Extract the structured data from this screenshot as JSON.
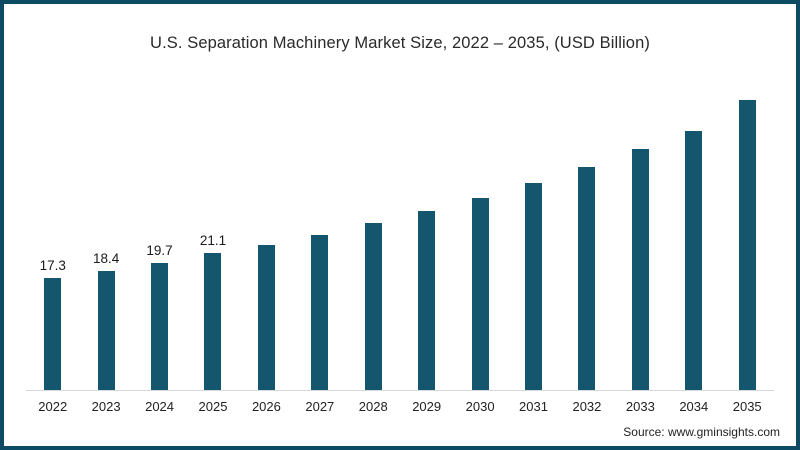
{
  "chart_data": {
    "type": "bar",
    "title": "U.S. Separation Machinery Market Size, 2022 – 2035, (USD Billion)",
    "categories": [
      "2022",
      "2023",
      "2024",
      "2025",
      "2026",
      "2027",
      "2028",
      "2029",
      "2030",
      "2031",
      "2032",
      "2033",
      "2034",
      "2035"
    ],
    "values": [
      17.3,
      18.4,
      19.7,
      21.1,
      22.4,
      24.0,
      25.8,
      27.6,
      29.7,
      32.0,
      34.4,
      37.2,
      40.1,
      44.8
    ],
    "data_labels": [
      "17.3",
      "18.4",
      "19.7",
      "21.1",
      "",
      "",
      "",
      "",
      "",
      "",
      "",
      "",
      "",
      ""
    ],
    "xlabel": "",
    "ylabel": "",
    "ylim": [
      0,
      46
    ],
    "grid": false,
    "legend_position": "none",
    "bar_color": "#14566e",
    "axis_line_color": "#d9d9d9"
  },
  "frame": {
    "border_color": "#0d4a63",
    "background_color": "#ffffff"
  },
  "source": {
    "text": "Source: www.gminsights.com"
  }
}
